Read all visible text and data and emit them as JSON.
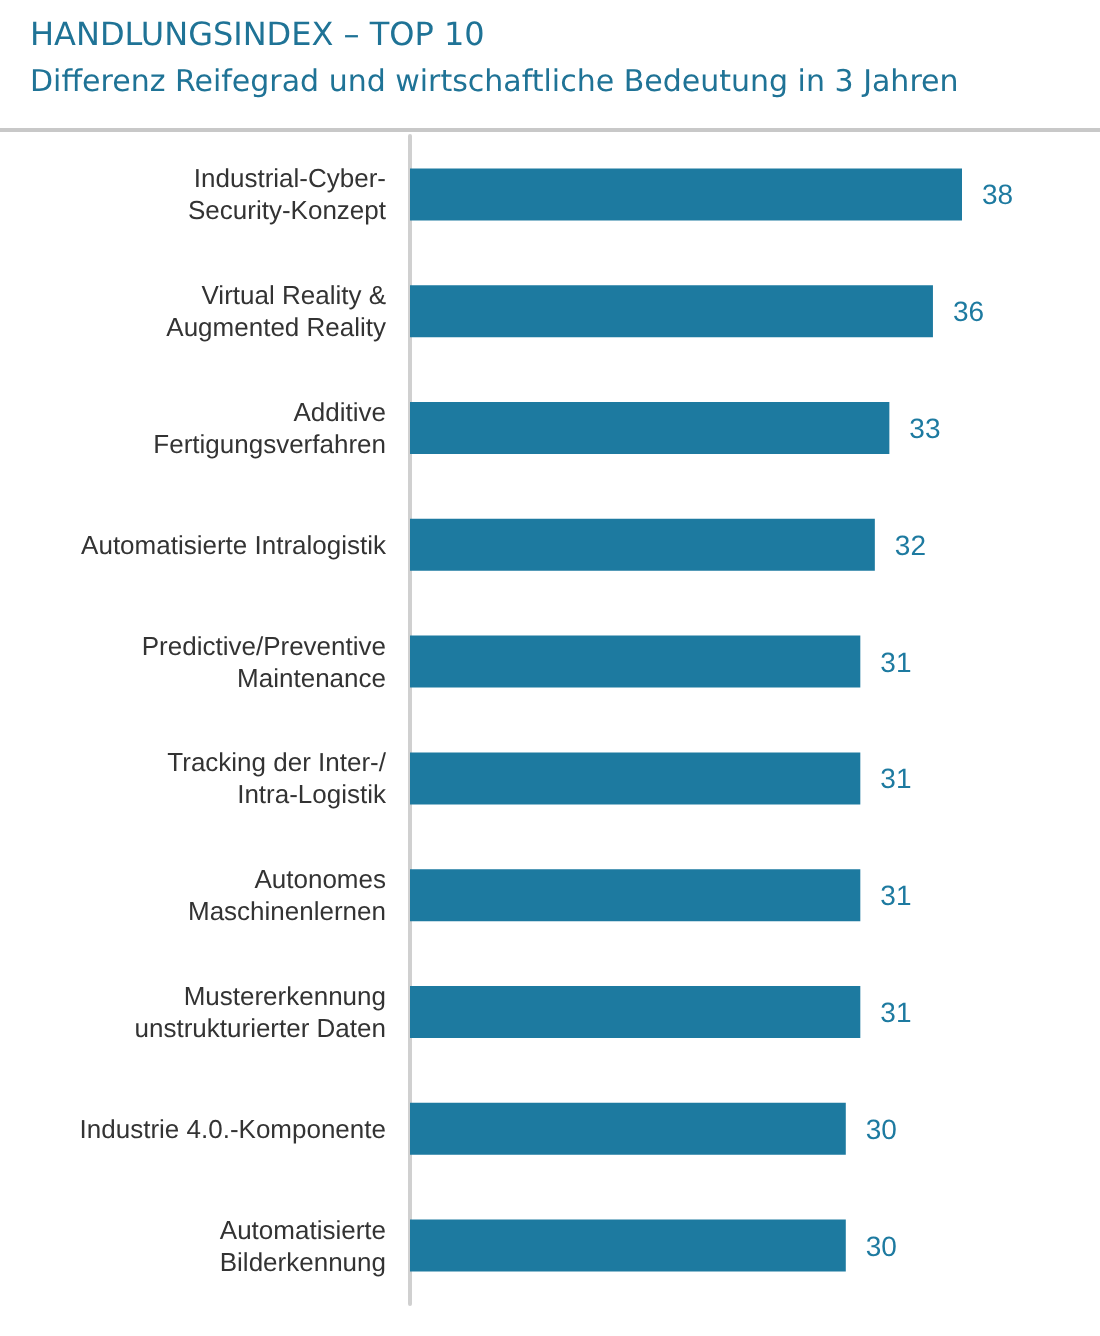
{
  "chart_data": {
    "type": "bar",
    "orientation": "horizontal",
    "title": "HANDLUNGSINDEX – TOP 10",
    "subtitle": "Differenz Reifegrad und wirtschaftliche Bedeutung in 3 Jahren",
    "categories": [
      "Industrial-Cyber-\nSecurity-Konzept",
      "Virtual Reality &\nAugmented Reality",
      "Additive\nFertigungsverfahren",
      "Automatisierte Intralogistik",
      "Predictive/Preventive\nMaintenance",
      "Tracking der Inter-/\nIntra-Logistik",
      "Autonomes\nMaschinenlernen",
      "Mustererkennung\nunstrukturierter Daten",
      "Industrie 4.0.-Komponente",
      "Automatisierte\nBilderkennung"
    ],
    "values": [
      38,
      36,
      33,
      32,
      31,
      31,
      31,
      31,
      30,
      30
    ],
    "color": "#1d7aa0",
    "data_labels": true
  }
}
